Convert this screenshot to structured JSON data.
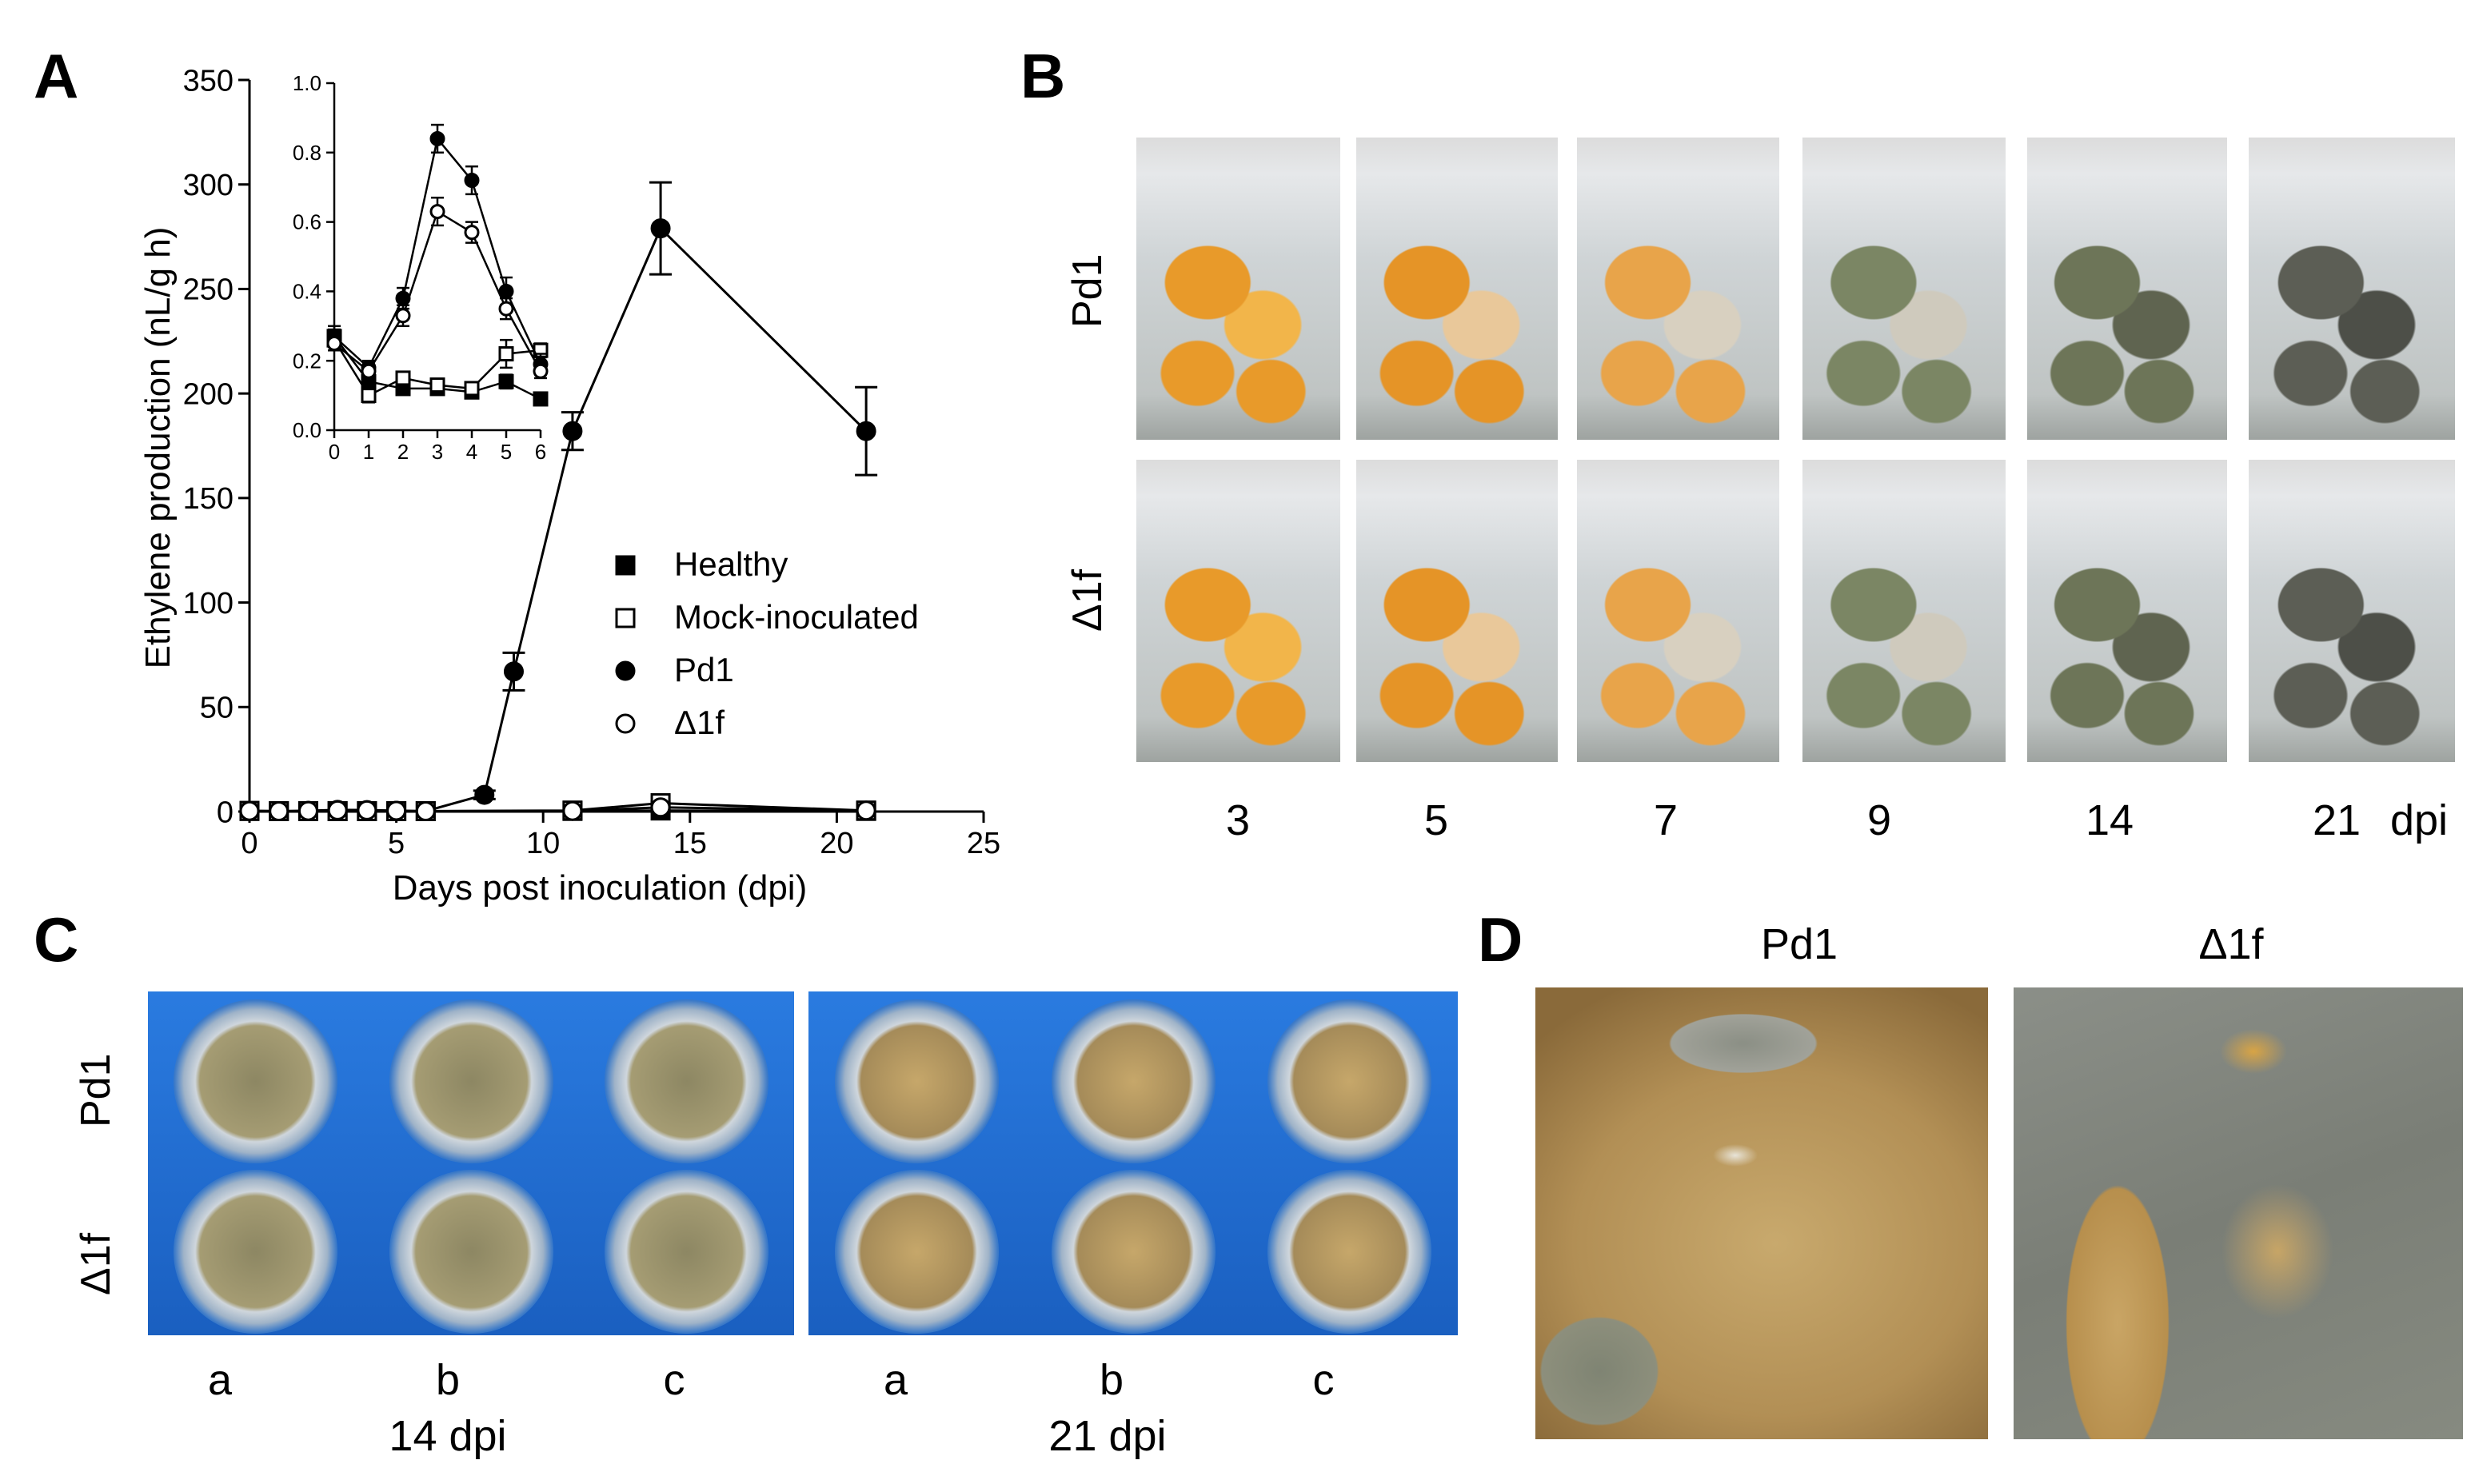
{
  "panels": {
    "a": "A",
    "b": "B",
    "c": "C",
    "d": "D"
  },
  "chart_data": [
    {
      "type": "line",
      "xlabel": "Days post inoculation (dpi)",
      "ylabel": "Ethylene production (nL/g h)",
      "xlim": [
        0,
        25
      ],
      "ylim": [
        0,
        350
      ],
      "xticks": [
        "0",
        "5",
        "10",
        "15",
        "20",
        "25"
      ],
      "yticks": [
        "0",
        "50",
        "100",
        "150",
        "200",
        "250",
        "300",
        "350"
      ],
      "legend": [
        "Healthy",
        "Mock-inoculated",
        "Pd1",
        "Δ1f"
      ],
      "legend_position": "center-right",
      "series": [
        {
          "name": "Healthy",
          "marker": "filled-square",
          "x": [
            0,
            1,
            2,
            3,
            4,
            5,
            6,
            11,
            14,
            21
          ],
          "y": [
            0.3,
            0.2,
            0.2,
            0.2,
            0.2,
            0.2,
            0.2,
            0.3,
            0.5,
            0.3
          ]
        },
        {
          "name": "Mock-inoculated",
          "marker": "open-square",
          "x": [
            0,
            1,
            2,
            3,
            4,
            5,
            6,
            11,
            14,
            21
          ],
          "y": [
            0.3,
            0.2,
            0.2,
            0.2,
            0.2,
            0.2,
            0.2,
            0.5,
            4,
            0.5
          ]
        },
        {
          "name": "Pd1",
          "marker": "filled-circle",
          "x": [
            0,
            1,
            2,
            3,
            4,
            5,
            6,
            8,
            9,
            11,
            14,
            21
          ],
          "y": [
            0.3,
            0.2,
            0.4,
            0.8,
            0.7,
            0.4,
            0.2,
            8,
            67,
            182,
            279,
            182
          ],
          "err": [
            0,
            0,
            0,
            0,
            0,
            0,
            0,
            2,
            9,
            9,
            22,
            21
          ]
        },
        {
          "name": "Δ1f",
          "marker": "open-circle",
          "x": [
            0,
            1,
            2,
            3,
            4,
            5,
            6,
            11,
            14,
            21
          ],
          "y": [
            0.3,
            0.2,
            0.3,
            0.6,
            0.6,
            0.4,
            0.2,
            0.3,
            2,
            0.5
          ]
        }
      ]
    },
    {
      "type": "line",
      "inset": true,
      "xlim": [
        0,
        6
      ],
      "ylim": [
        0,
        1.0
      ],
      "xticks": [
        "0",
        "1",
        "2",
        "3",
        "4",
        "5",
        "6"
      ],
      "yticks": [
        "0.0",
        "0.2",
        "0.4",
        "0.6",
        "0.8",
        "1.0"
      ],
      "series": [
        {
          "name": "Healthy",
          "marker": "filled-square",
          "x": [
            0,
            1,
            2,
            3,
            4,
            5,
            6
          ],
          "y": [
            0.27,
            0.14,
            0.12,
            0.12,
            0.11,
            0.14,
            0.09
          ],
          "err": [
            0.03,
            0.02,
            0.01,
            0.01,
            0.01,
            0.02,
            0.01
          ]
        },
        {
          "name": "Mock-inoculated",
          "marker": "open-square",
          "x": [
            0,
            1,
            2,
            3,
            4,
            5,
            6
          ],
          "y": [
            0.26,
            0.1,
            0.15,
            0.13,
            0.12,
            0.22,
            0.23
          ],
          "err": [
            0.03,
            0.02,
            0.01,
            0.01,
            0.01,
            0.04,
            0.02
          ]
        },
        {
          "name": "Pd1",
          "marker": "filled-circle",
          "x": [
            0,
            1,
            2,
            3,
            4,
            5,
            6
          ],
          "y": [
            0.27,
            0.18,
            0.38,
            0.84,
            0.72,
            0.4,
            0.19
          ],
          "err": [
            0.02,
            0.02,
            0.03,
            0.04,
            0.04,
            0.04,
            0.03
          ]
        },
        {
          "name": "Δ1f",
          "marker": "open-circle",
          "x": [
            0,
            1,
            2,
            3,
            4,
            5,
            6
          ],
          "y": [
            0.25,
            0.17,
            0.33,
            0.63,
            0.57,
            0.35,
            0.17
          ],
          "err": [
            0.02,
            0.02,
            0.03,
            0.04,
            0.03,
            0.03,
            0.02
          ]
        }
      ]
    }
  ],
  "panel_b": {
    "rows": [
      "Pd1",
      "Δ1f"
    ],
    "columns": [
      "3",
      "5",
      "7",
      "9",
      "14",
      "21"
    ],
    "unit": "dpi"
  },
  "panel_c": {
    "rows": [
      "Pd1",
      "Δ1f"
    ],
    "cols": [
      "a",
      "b",
      "c",
      "a",
      "b",
      "c"
    ],
    "groups": [
      "14 dpi",
      "21 dpi"
    ]
  },
  "panel_d": {
    "titles": [
      "Pd1",
      "Δ1f"
    ]
  },
  "colors": {
    "orange": "#e89a2a",
    "mold_green": "#6d7558",
    "blue_bg": "#1f6fd1",
    "fruit_tan": "#c9a96a"
  }
}
